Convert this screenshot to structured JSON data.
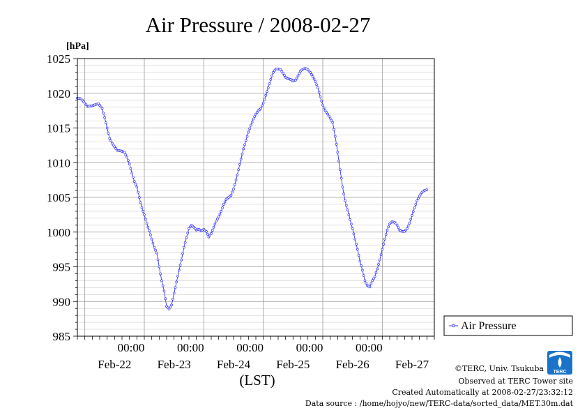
{
  "chart_data": {
    "type": "line",
    "title": "Air Pressure / 2008-02-27",
    "y_unit_label": "[hPa]",
    "x_axis_label": "(LST)",
    "ylim": [
      985,
      1025
    ],
    "y_ticks": [
      "985",
      "990",
      "995",
      "1000",
      "1005",
      "1010",
      "1015",
      "1020",
      "1025"
    ],
    "x_range_hours": [
      0,
      144
    ],
    "x_time_labels": [
      "00:00",
      "00:00",
      "00:00",
      "00:00",
      "00:00"
    ],
    "x_date_labels": [
      "Feb-22",
      "Feb-23",
      "Feb-24",
      "Feb-25",
      "Feb-26",
      "Feb-27"
    ],
    "series": [
      {
        "name": "Air Pressure",
        "color": "#3333ff",
        "x_unit": "hours since 2008-02-21 21:00 LST",
        "points": [
          [
            0,
            1019.3
          ],
          [
            1.5,
            1019.2
          ],
          [
            3,
            1018.6
          ],
          [
            4,
            1018.1
          ],
          [
            6,
            1018.2
          ],
          [
            7.5,
            1018.4
          ],
          [
            8.5,
            1018.5
          ],
          [
            10,
            1017.8
          ],
          [
            11,
            1016.5
          ],
          [
            12,
            1015
          ],
          [
            13,
            1013.5
          ],
          [
            14,
            1012.8
          ],
          [
            15,
            1012.3
          ],
          [
            16,
            1011.8
          ],
          [
            17.5,
            1011.7
          ],
          [
            19,
            1011.5
          ],
          [
            20,
            1010.8
          ],
          [
            21,
            1009.8
          ],
          [
            22,
            1008.5
          ],
          [
            23,
            1007.3
          ],
          [
            24,
            1006.5
          ],
          [
            25,
            1005
          ],
          [
            26,
            1003.5
          ],
          [
            27,
            1002.5
          ],
          [
            28,
            1001.2
          ],
          [
            29,
            1000.2
          ],
          [
            30,
            999
          ],
          [
            31,
            997.8
          ],
          [
            32,
            997
          ],
          [
            33,
            995
          ],
          [
            34,
            993
          ],
          [
            35,
            991.5
          ],
          [
            36,
            989.3
          ],
          [
            37,
            988.9
          ],
          [
            38,
            989.5
          ],
          [
            39,
            991.2
          ],
          [
            40,
            992.8
          ],
          [
            41,
            994.5
          ],
          [
            42,
            996
          ],
          [
            43,
            997.8
          ],
          [
            44,
            999.2
          ],
          [
            45,
            1000.5
          ],
          [
            46,
            1001
          ],
          [
            47,
            1000.7
          ],
          [
            48,
            1000.3
          ],
          [
            49,
            1000.4
          ],
          [
            50,
            1000.2
          ],
          [
            51,
            1000.4
          ],
          [
            52,
            1000.1
          ],
          [
            53,
            999.3
          ],
          [
            54,
            999.8
          ],
          [
            55,
            1000.7
          ],
          [
            56,
            1001.6
          ],
          [
            57,
            1002.2
          ],
          [
            58,
            1003
          ],
          [
            59,
            1004
          ],
          [
            60,
            1004.7
          ],
          [
            61,
            1005
          ],
          [
            62,
            1005.3
          ],
          [
            63,
            1006.2
          ],
          [
            64,
            1007.5
          ],
          [
            65,
            1009
          ],
          [
            66,
            1010.5
          ],
          [
            67,
            1012
          ],
          [
            68,
            1013.2
          ],
          [
            69,
            1014.4
          ],
          [
            70,
            1015.4
          ],
          [
            71,
            1016.3
          ],
          [
            72,
            1017
          ],
          [
            73,
            1017.5
          ],
          [
            74,
            1017.8
          ],
          [
            75,
            1018.6
          ],
          [
            76,
            1019.7
          ],
          [
            77,
            1020.8
          ],
          [
            78,
            1022
          ],
          [
            79,
            1023
          ],
          [
            80,
            1023.5
          ],
          [
            81,
            1023.5
          ],
          [
            82,
            1023.4
          ],
          [
            83,
            1022.9
          ],
          [
            84,
            1022.3
          ],
          [
            85,
            1022.1
          ],
          [
            86,
            1022
          ],
          [
            87,
            1021.8
          ],
          [
            88,
            1021.9
          ],
          [
            89,
            1022.5
          ],
          [
            90,
            1023.2
          ],
          [
            91,
            1023.5
          ],
          [
            92,
            1023.6
          ],
          [
            93,
            1023.4
          ],
          [
            94,
            1023
          ],
          [
            95,
            1022.4
          ],
          [
            96,
            1021.7
          ],
          [
            97,
            1020.8
          ],
          [
            98,
            1019.5
          ],
          [
            99,
            1018.3
          ],
          [
            100,
            1017.5
          ],
          [
            101,
            1017
          ],
          [
            102,
            1016.4
          ],
          [
            103,
            1015.8
          ],
          [
            104,
            1013.8
          ],
          [
            105,
            1011.5
          ],
          [
            106,
            1009
          ],
          [
            107,
            1006.5
          ],
          [
            108,
            1004.5
          ],
          [
            109,
            1003.2
          ],
          [
            110,
            1001.8
          ],
          [
            111,
            1000.5
          ],
          [
            112,
            999
          ],
          [
            113,
            997.5
          ],
          [
            114,
            995.8
          ],
          [
            115,
            994.5
          ],
          [
            116,
            993
          ],
          [
            117,
            992.3
          ],
          [
            118,
            992.1
          ],
          [
            119,
            993
          ],
          [
            120,
            993.6
          ],
          [
            121,
            994.7
          ],
          [
            122,
            996
          ],
          [
            123,
            997.5
          ],
          [
            124,
            999
          ],
          [
            125,
            1000.3
          ],
          [
            126,
            1001.2
          ],
          [
            127,
            1001.5
          ],
          [
            128,
            1001.4
          ],
          [
            129,
            1001
          ],
          [
            130,
            1000.3
          ],
          [
            131,
            1000.1
          ],
          [
            132,
            1000.1
          ],
          [
            133,
            1000.5
          ],
          [
            134,
            1001.3
          ],
          [
            135,
            1002.4
          ],
          [
            136,
            1003.5
          ],
          [
            137,
            1004.5
          ],
          [
            138,
            1005.2
          ],
          [
            139,
            1005.7
          ],
          [
            140,
            1006
          ],
          [
            141,
            1006.1
          ]
        ]
      }
    ],
    "grid": true,
    "legend": "right"
  },
  "footer": {
    "copyright": "©TERC, Univ. Tsukuba",
    "observed": "Observed at TERC Tower site",
    "created": "Created Automatically at 2008-02-27/23:32:12",
    "source": "Data source : /home/hojyo/new/TERC-data/sorted_data/MET.30m.dat"
  },
  "logo": {
    "text": "TERC",
    "color": "#1a73c8"
  }
}
